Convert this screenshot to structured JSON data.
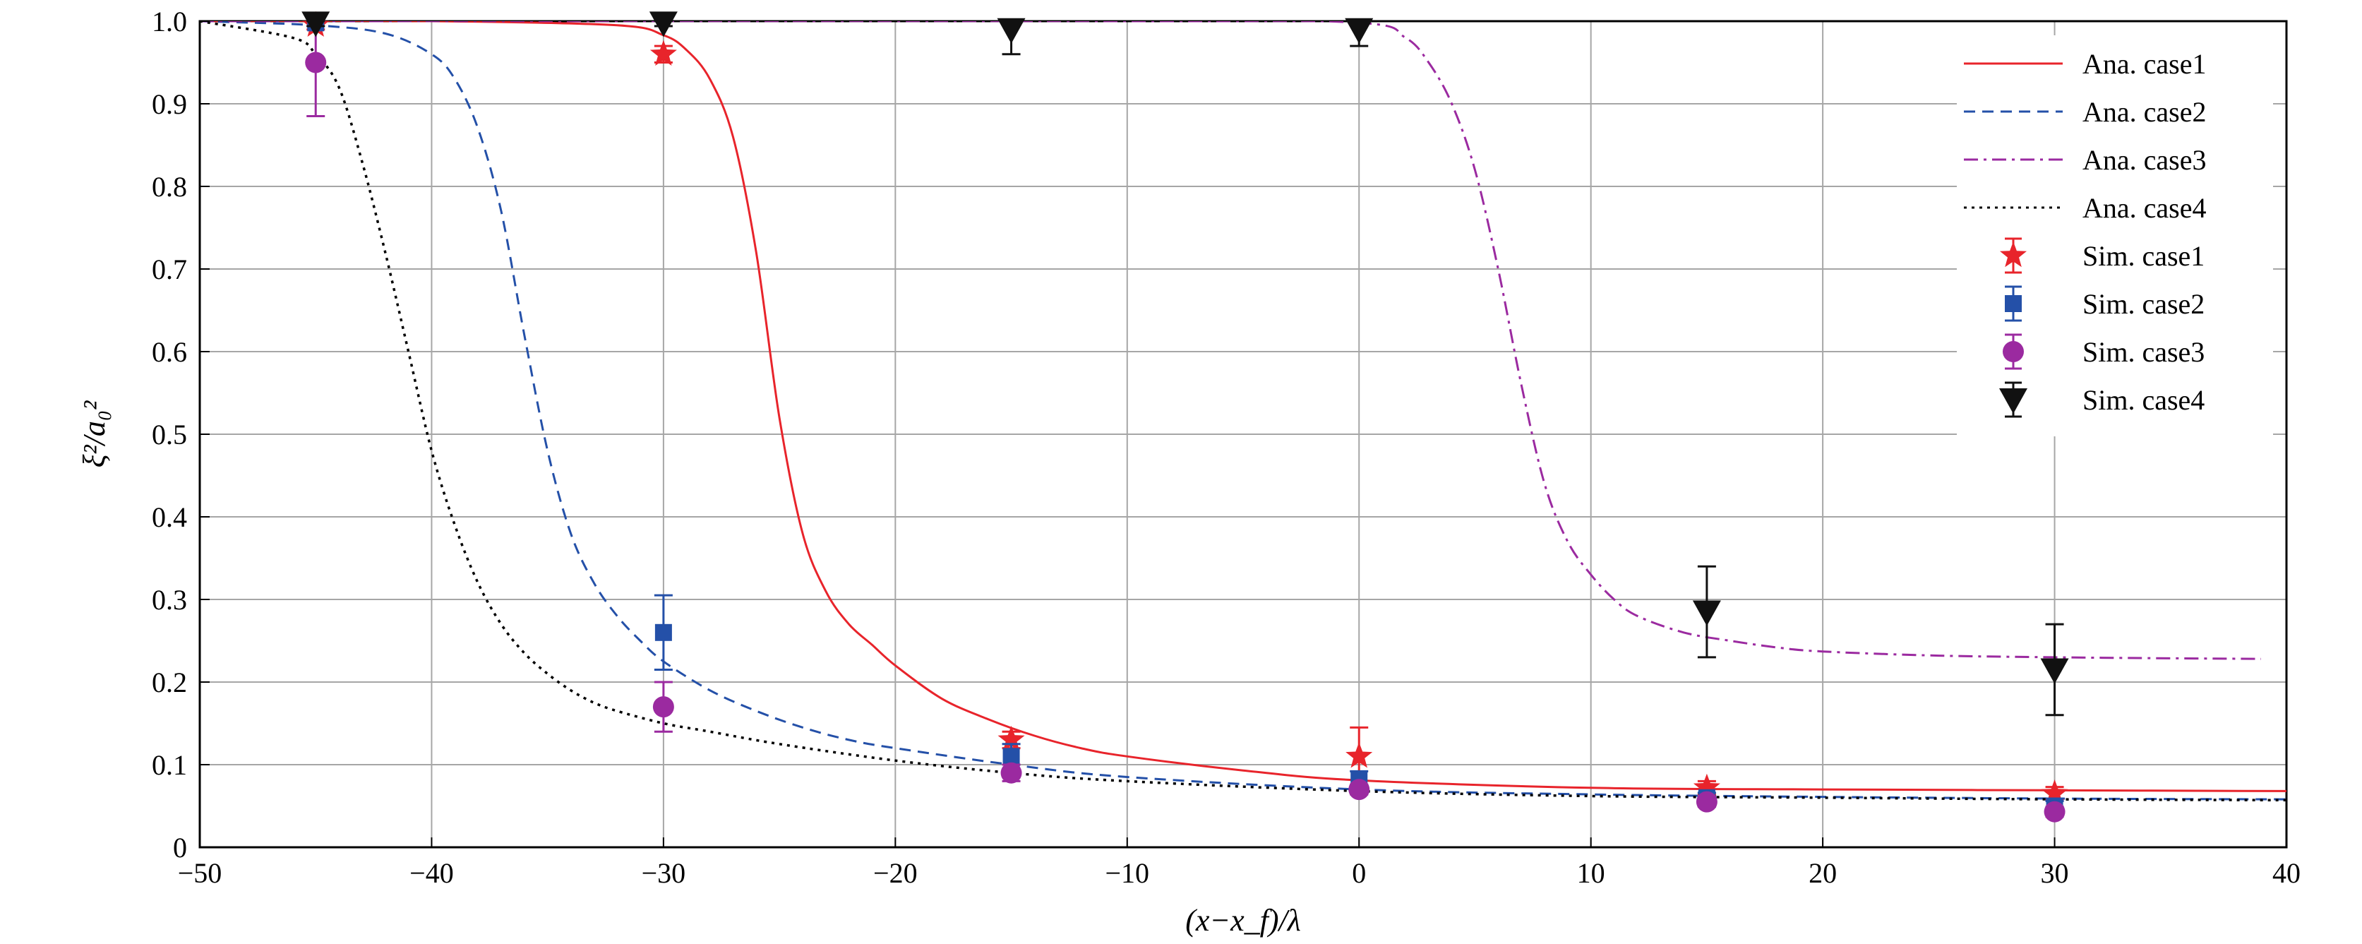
{
  "chart_data": {
    "type": "line",
    "xlabel": "(x−x_f)/λ",
    "ylabel": "ξ²/a₀²",
    "xlim": [
      -50,
      40
    ],
    "ylim": [
      0,
      1.0
    ],
    "x_ticks": [
      -50,
      -40,
      -30,
      -20,
      -10,
      0,
      10,
      20,
      30,
      40
    ],
    "y_ticks": [
      0,
      0.1,
      0.2,
      0.3,
      0.4,
      0.5,
      0.6,
      0.7,
      0.8,
      0.9,
      1.0
    ],
    "x_tick_labels": [
      "−50",
      "−40",
      "−30",
      "−20",
      "−10",
      "0",
      "10",
      "20",
      "30",
      "40"
    ],
    "y_tick_labels": [
      "0",
      "0.1",
      "0.2",
      "0.3",
      "0.4",
      "0.5",
      "0.6",
      "0.7",
      "0.8",
      "0.9",
      "1.0"
    ],
    "grid": true,
    "legend_position": "top-right",
    "analytic_series": [
      {
        "name": "Ana. case1",
        "color": "#e8242b",
        "dash": "solid",
        "x": [
          -50,
          -40,
          -32,
          -30,
          -29,
          -28,
          -27,
          -26,
          -25,
          -24,
          -23,
          -22,
          -21,
          -20,
          -18,
          -16,
          -14,
          -12,
          -10,
          -5,
          0,
          10,
          20,
          30,
          40
        ],
        "y": [
          1.0,
          1.0,
          0.995,
          0.983,
          0.965,
          0.93,
          0.86,
          0.72,
          0.52,
          0.38,
          0.31,
          0.27,
          0.245,
          0.22,
          0.18,
          0.155,
          0.135,
          0.12,
          0.11,
          0.093,
          0.081,
          0.072,
          0.07,
          0.069,
          0.068
        ]
      },
      {
        "name": "Ana. case2",
        "color": "#2450a8",
        "dash": "dashed",
        "x": [
          -50,
          -45,
          -42,
          -40,
          -39,
          -38,
          -37,
          -36,
          -35,
          -34,
          -33,
          -32,
          -31,
          -30,
          -28,
          -26,
          -24,
          -22,
          -20,
          -15,
          -10,
          0,
          10,
          20,
          30,
          40
        ],
        "y": [
          1.0,
          0.995,
          0.985,
          0.96,
          0.93,
          0.87,
          0.77,
          0.62,
          0.48,
          0.38,
          0.32,
          0.28,
          0.25,
          0.225,
          0.19,
          0.165,
          0.145,
          0.13,
          0.12,
          0.1,
          0.085,
          0.07,
          0.064,
          0.061,
          0.059,
          0.058
        ]
      },
      {
        "name": "Ana. case3",
        "color": "#9b2aa0",
        "dash": "dashdot",
        "x": [
          -50,
          -10,
          0,
          2,
          3,
          4,
          5,
          6,
          7,
          8,
          9,
          10,
          11,
          12,
          14,
          16,
          18,
          20,
          25,
          30,
          34,
          38.9
        ],
        "y": [
          1.0,
          1.0,
          0.998,
          0.98,
          0.95,
          0.9,
          0.82,
          0.7,
          0.56,
          0.44,
          0.37,
          0.33,
          0.3,
          0.28,
          0.26,
          0.25,
          0.242,
          0.237,
          0.232,
          0.23,
          0.229,
          0.228
        ]
      },
      {
        "name": "Ana. case4",
        "color": "#000000",
        "dash": "dotted",
        "x": [
          -50,
          -46,
          -45,
          -44,
          -43,
          -42,
          -41,
          -40,
          -39,
          -38,
          -37,
          -36,
          -35,
          -34,
          -33,
          -32,
          -30,
          -28,
          -25,
          -20,
          -15,
          -10,
          0,
          10,
          20,
          30,
          40
        ],
        "y": [
          1.0,
          0.98,
          0.96,
          0.92,
          0.83,
          0.72,
          0.6,
          0.48,
          0.39,
          0.32,
          0.27,
          0.235,
          0.21,
          0.19,
          0.175,
          0.165,
          0.15,
          0.14,
          0.125,
          0.105,
          0.09,
          0.08,
          0.068,
          0.062,
          0.06,
          0.058,
          0.057
        ]
      }
    ],
    "simulation_series": [
      {
        "name": "Sim. case1",
        "color": "#e8242b",
        "marker": "star",
        "x": [
          -45,
          -30,
          -15,
          0,
          15,
          30
        ],
        "y": [
          0.995,
          0.96,
          0.13,
          0.11,
          0.072,
          0.065
        ],
        "err": [
          0.005,
          0.01,
          0.01,
          0.035,
          0.008,
          0.008
        ]
      },
      {
        "name": "Sim. case2",
        "color": "#2450a8",
        "marker": "square",
        "x": [
          -45,
          -30,
          -15,
          0,
          15,
          30
        ],
        "y": [
          0.998,
          0.26,
          0.11,
          0.082,
          0.06,
          0.05
        ],
        "err": [
          0.004,
          0.045,
          0.015,
          0.01,
          0.006,
          0.006
        ]
      },
      {
        "name": "Sim. case3",
        "color": "#9b2aa0",
        "marker": "circle",
        "x": [
          -45,
          -30,
          -15,
          0,
          15,
          30
        ],
        "y": [
          0.95,
          0.17,
          0.09,
          0.07,
          0.055,
          0.043
        ],
        "err": [
          0.065,
          0.03,
          0.01,
          0.006,
          0.006,
          0.006
        ]
      },
      {
        "name": "Sim. case4",
        "color": "#111111",
        "marker": "triangle-down",
        "x": [
          -45,
          -30,
          -15,
          0,
          15,
          30
        ],
        "y": [
          0.998,
          0.998,
          0.99,
          0.99,
          0.285,
          0.215
        ],
        "err": [
          0.004,
          0.004,
          0.03,
          0.02,
          0.055,
          0.055
        ]
      }
    ]
  }
}
